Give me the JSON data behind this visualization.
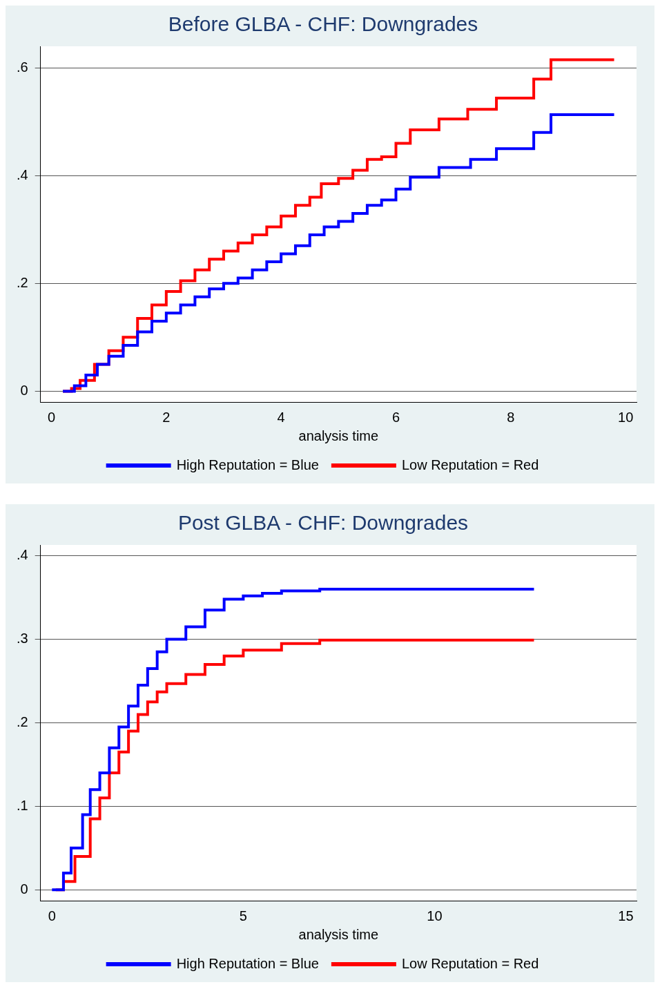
{
  "chart_data": [
    {
      "type": "step",
      "title": "Before GLBA - CHF: Downgrades",
      "xlabel": "analysis time",
      "xlim": [
        -0.19,
        10.19
      ],
      "xticks": [
        0,
        2,
        4,
        6,
        8,
        10
      ],
      "ylim": [
        -0.02,
        0.64
      ],
      "yticks": [
        {
          "value": 0,
          "label": "0"
        },
        {
          "value": 0.2,
          "label": ".2"
        },
        {
          "value": 0.4,
          "label": ".4"
        },
        {
          "value": 0.6,
          "label": ".6"
        }
      ],
      "grid": "y",
      "legend": "bottom",
      "series": [
        {
          "name": "High Reputation = Blue",
          "color": "#0000ff",
          "x": [
            0.2,
            0.4,
            0.6,
            0.8,
            1,
            1.25,
            1.5,
            1.75,
            2,
            2.25,
            2.5,
            2.75,
            3,
            3.25,
            3.5,
            3.75,
            4,
            4.25,
            4.5,
            4.75,
            5,
            5.25,
            5.5,
            5.75,
            6,
            6.25,
            6.75,
            7.3,
            7.75,
            8.4,
            8.7,
            9.8
          ],
          "values": [
            0,
            0.01,
            0.03,
            0.05,
            0.065,
            0.085,
            0.11,
            0.13,
            0.145,
            0.16,
            0.175,
            0.19,
            0.2,
            0.21,
            0.225,
            0.24,
            0.255,
            0.27,
            0.29,
            0.305,
            0.315,
            0.33,
            0.345,
            0.355,
            0.375,
            0.397,
            0.415,
            0.43,
            0.45,
            0.48,
            0.513,
            0.513
          ]
        },
        {
          "name": "Low Reputation = Red",
          "color": "#ff0000",
          "x": [
            0.2,
            0.35,
            0.5,
            0.75,
            1,
            1.25,
            1.5,
            1.75,
            2,
            2.25,
            2.5,
            2.75,
            3,
            3.25,
            3.5,
            3.75,
            4,
            4.25,
            4.5,
            4.7,
            5,
            5.25,
            5.5,
            5.75,
            6,
            6.25,
            6.75,
            7.25,
            7.75,
            8.4,
            8.7,
            9.8
          ],
          "values": [
            0,
            0.005,
            0.02,
            0.05,
            0.075,
            0.1,
            0.135,
            0.16,
            0.185,
            0.205,
            0.225,
            0.245,
            0.26,
            0.275,
            0.29,
            0.305,
            0.325,
            0.345,
            0.36,
            0.385,
            0.395,
            0.41,
            0.43,
            0.435,
            0.46,
            0.485,
            0.505,
            0.523,
            0.544,
            0.579,
            0.615,
            0.615
          ]
        }
      ]
    },
    {
      "type": "step",
      "title": "Post GLBA - CHF: Downgrades",
      "xlabel": "analysis time",
      "xlim": [
        -0.3,
        15.28
      ],
      "xticks": [
        0,
        5,
        10,
        15
      ],
      "ylim": [
        -0.013,
        0.413
      ],
      "yticks": [
        {
          "value": 0,
          "label": "0"
        },
        {
          "value": 0.1,
          "label": ".1"
        },
        {
          "value": 0.2,
          "label": ".2"
        },
        {
          "value": 0.3,
          "label": ".3"
        },
        {
          "value": 0.4,
          "label": ".4"
        }
      ],
      "grid": "y",
      "legend": "bottom",
      "series": [
        {
          "name": "High Reputation = Blue",
          "color": "#0000ff",
          "x": [
            0,
            0.3,
            0.5,
            0.8,
            1,
            1.25,
            1.5,
            1.75,
            2,
            2.25,
            2.5,
            2.75,
            3,
            3.5,
            4,
            4.5,
            5,
            5.5,
            6,
            7,
            12.6
          ],
          "values": [
            0,
            0.02,
            0.05,
            0.09,
            0.12,
            0.14,
            0.17,
            0.195,
            0.22,
            0.245,
            0.265,
            0.285,
            0.3,
            0.315,
            0.335,
            0.348,
            0.352,
            0.355,
            0.358,
            0.36,
            0.36
          ]
        },
        {
          "name": "Low Reputation = Red",
          "color": "#ff0000",
          "x": [
            0.1,
            0.3,
            0.6,
            1,
            1.25,
            1.5,
            1.75,
            2,
            2.25,
            2.5,
            2.75,
            3,
            3.5,
            4,
            4.5,
            5,
            6,
            7,
            12.6
          ],
          "values": [
            0,
            0.01,
            0.04,
            0.085,
            0.11,
            0.14,
            0.165,
            0.19,
            0.21,
            0.225,
            0.237,
            0.247,
            0.258,
            0.27,
            0.28,
            0.287,
            0.295,
            0.299,
            0.299
          ]
        }
      ]
    }
  ]
}
